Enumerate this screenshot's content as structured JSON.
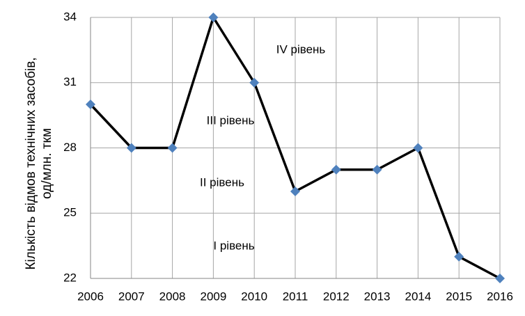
{
  "chart_data": {
    "type": "line",
    "y_label": [
      "Кількість відмов технічних засобів,",
      "од/млн. ткм"
    ],
    "annotations": [
      "IV рівень",
      "III рівень",
      "II рівень",
      "I рівень"
    ],
    "x": [
      2006,
      2007,
      2008,
      2009,
      2010,
      2011,
      2012,
      2013,
      2014,
      2015,
      2016
    ],
    "values": [
      30,
      28,
      28,
      34,
      31,
      26,
      27,
      27,
      28,
      23,
      22
    ],
    "line_color": "#000000",
    "marker_color": "#4f81bd",
    "xlim": [
      2006,
      2016
    ],
    "xticks": [
      2006,
      2007,
      2008,
      2009,
      2010,
      2011,
      2012,
      2013,
      2014,
      2015,
      2016
    ],
    "ylim": [
      22,
      34
    ],
    "yticks": [
      22,
      25,
      28,
      31,
      34
    ],
    "grid": true
  }
}
